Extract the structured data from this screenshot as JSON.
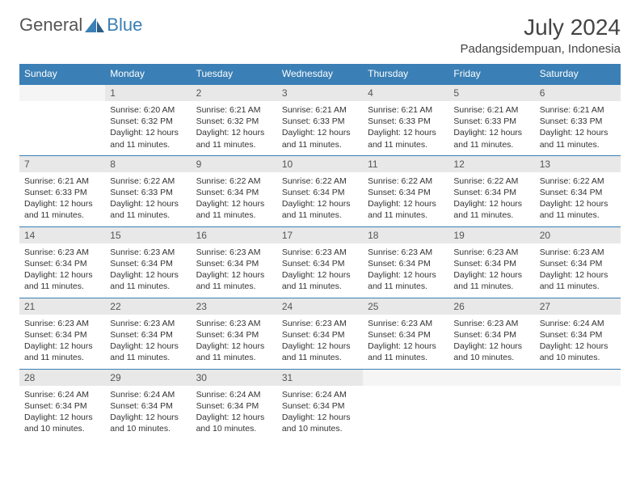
{
  "brand": {
    "part1": "General",
    "part2": "Blue"
  },
  "title": "July 2024",
  "location": "Padangsidempuan, Indonesia",
  "colors": {
    "header_bg": "#3a7fb5",
    "daynum_bg": "#e8e8e8",
    "rule": "#3a7fb5"
  },
  "day_labels": [
    "Sunday",
    "Monday",
    "Tuesday",
    "Wednesday",
    "Thursday",
    "Friday",
    "Saturday"
  ],
  "weeks": [
    [
      null,
      {
        "n": "1",
        "sr": "6:20 AM",
        "ss": "6:32 PM",
        "dl": "12 hours and 11 minutes."
      },
      {
        "n": "2",
        "sr": "6:21 AM",
        "ss": "6:32 PM",
        "dl": "12 hours and 11 minutes."
      },
      {
        "n": "3",
        "sr": "6:21 AM",
        "ss": "6:33 PM",
        "dl": "12 hours and 11 minutes."
      },
      {
        "n": "4",
        "sr": "6:21 AM",
        "ss": "6:33 PM",
        "dl": "12 hours and 11 minutes."
      },
      {
        "n": "5",
        "sr": "6:21 AM",
        "ss": "6:33 PM",
        "dl": "12 hours and 11 minutes."
      },
      {
        "n": "6",
        "sr": "6:21 AM",
        "ss": "6:33 PM",
        "dl": "12 hours and 11 minutes."
      }
    ],
    [
      {
        "n": "7",
        "sr": "6:21 AM",
        "ss": "6:33 PM",
        "dl": "12 hours and 11 minutes."
      },
      {
        "n": "8",
        "sr": "6:22 AM",
        "ss": "6:33 PM",
        "dl": "12 hours and 11 minutes."
      },
      {
        "n": "9",
        "sr": "6:22 AM",
        "ss": "6:34 PM",
        "dl": "12 hours and 11 minutes."
      },
      {
        "n": "10",
        "sr": "6:22 AM",
        "ss": "6:34 PM",
        "dl": "12 hours and 11 minutes."
      },
      {
        "n": "11",
        "sr": "6:22 AM",
        "ss": "6:34 PM",
        "dl": "12 hours and 11 minutes."
      },
      {
        "n": "12",
        "sr": "6:22 AM",
        "ss": "6:34 PM",
        "dl": "12 hours and 11 minutes."
      },
      {
        "n": "13",
        "sr": "6:22 AM",
        "ss": "6:34 PM",
        "dl": "12 hours and 11 minutes."
      }
    ],
    [
      {
        "n": "14",
        "sr": "6:23 AM",
        "ss": "6:34 PM",
        "dl": "12 hours and 11 minutes."
      },
      {
        "n": "15",
        "sr": "6:23 AM",
        "ss": "6:34 PM",
        "dl": "12 hours and 11 minutes."
      },
      {
        "n": "16",
        "sr": "6:23 AM",
        "ss": "6:34 PM",
        "dl": "12 hours and 11 minutes."
      },
      {
        "n": "17",
        "sr": "6:23 AM",
        "ss": "6:34 PM",
        "dl": "12 hours and 11 minutes."
      },
      {
        "n": "18",
        "sr": "6:23 AM",
        "ss": "6:34 PM",
        "dl": "12 hours and 11 minutes."
      },
      {
        "n": "19",
        "sr": "6:23 AM",
        "ss": "6:34 PM",
        "dl": "12 hours and 11 minutes."
      },
      {
        "n": "20",
        "sr": "6:23 AM",
        "ss": "6:34 PM",
        "dl": "12 hours and 11 minutes."
      }
    ],
    [
      {
        "n": "21",
        "sr": "6:23 AM",
        "ss": "6:34 PM",
        "dl": "12 hours and 11 minutes."
      },
      {
        "n": "22",
        "sr": "6:23 AM",
        "ss": "6:34 PM",
        "dl": "12 hours and 11 minutes."
      },
      {
        "n": "23",
        "sr": "6:23 AM",
        "ss": "6:34 PM",
        "dl": "12 hours and 11 minutes."
      },
      {
        "n": "24",
        "sr": "6:23 AM",
        "ss": "6:34 PM",
        "dl": "12 hours and 11 minutes."
      },
      {
        "n": "25",
        "sr": "6:23 AM",
        "ss": "6:34 PM",
        "dl": "12 hours and 11 minutes."
      },
      {
        "n": "26",
        "sr": "6:23 AM",
        "ss": "6:34 PM",
        "dl": "12 hours and 10 minutes."
      },
      {
        "n": "27",
        "sr": "6:24 AM",
        "ss": "6:34 PM",
        "dl": "12 hours and 10 minutes."
      }
    ],
    [
      {
        "n": "28",
        "sr": "6:24 AM",
        "ss": "6:34 PM",
        "dl": "12 hours and 10 minutes."
      },
      {
        "n": "29",
        "sr": "6:24 AM",
        "ss": "6:34 PM",
        "dl": "12 hours and 10 minutes."
      },
      {
        "n": "30",
        "sr": "6:24 AM",
        "ss": "6:34 PM",
        "dl": "12 hours and 10 minutes."
      },
      {
        "n": "31",
        "sr": "6:24 AM",
        "ss": "6:34 PM",
        "dl": "12 hours and 10 minutes."
      },
      null,
      null,
      null
    ]
  ],
  "labels": {
    "sunrise": "Sunrise: ",
    "sunset": "Sunset: ",
    "daylight": "Daylight: "
  }
}
